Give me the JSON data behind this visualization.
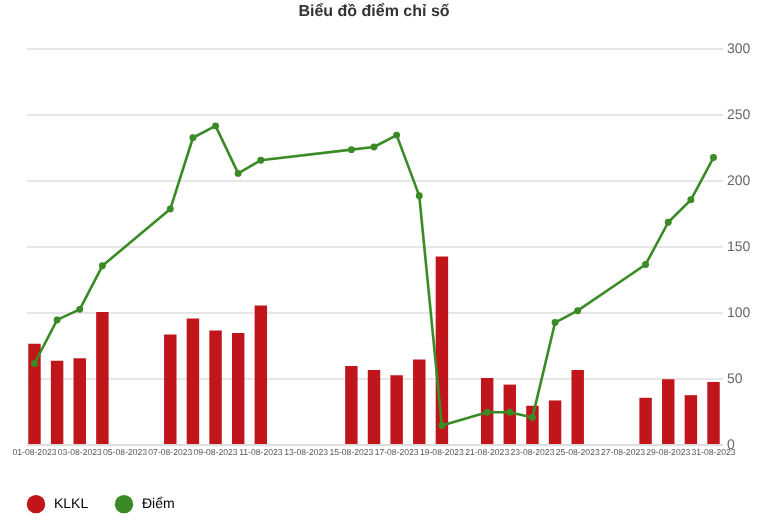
{
  "chart_data": {
    "type": "bar",
    "title": "Biểu đồ điểm chỉ số",
    "categories": [
      "01-08-2023",
      null,
      "03-08-2023",
      null,
      "05-08-2023",
      null,
      "07-08-2023",
      null,
      "09-08-2023",
      null,
      "11-08-2023",
      null,
      "13-08-2023",
      null,
      "15-08-2023",
      null,
      "17-08-2023",
      null,
      "19-08-2023",
      null,
      "21-08-2023",
      null,
      "23-08-2023",
      null,
      "25-08-2023",
      null,
      "27-08-2023",
      null,
      "29-08-2023",
      null,
      "31-08-2023"
    ],
    "series": [
      {
        "name": "KLKL",
        "color": "#c0161b",
        "values": [
          76,
          63,
          65,
          100,
          null,
          null,
          83,
          95,
          86,
          84,
          105,
          null,
          null,
          null,
          59,
          56,
          52,
          64,
          142,
          null,
          50,
          45,
          29,
          33,
          56,
          null,
          null,
          35,
          49,
          37,
          47
        ]
      },
      {
        "name": "Điểm",
        "type": "line",
        "color": "#3a8a26",
        "values": [
          61,
          94,
          102,
          135,
          null,
          null,
          178,
          232,
          241,
          205,
          215,
          null,
          null,
          null,
          223,
          225,
          234,
          188,
          14,
          null,
          24,
          24,
          20,
          92,
          101,
          null,
          null,
          136,
          168,
          185,
          217
        ]
      }
    ],
    "ylim": [
      0,
      300
    ],
    "yticks": [
      0,
      50,
      100,
      150,
      200,
      250,
      300
    ],
    "grid": "y",
    "legend": "bottom",
    "marker": "circle"
  }
}
